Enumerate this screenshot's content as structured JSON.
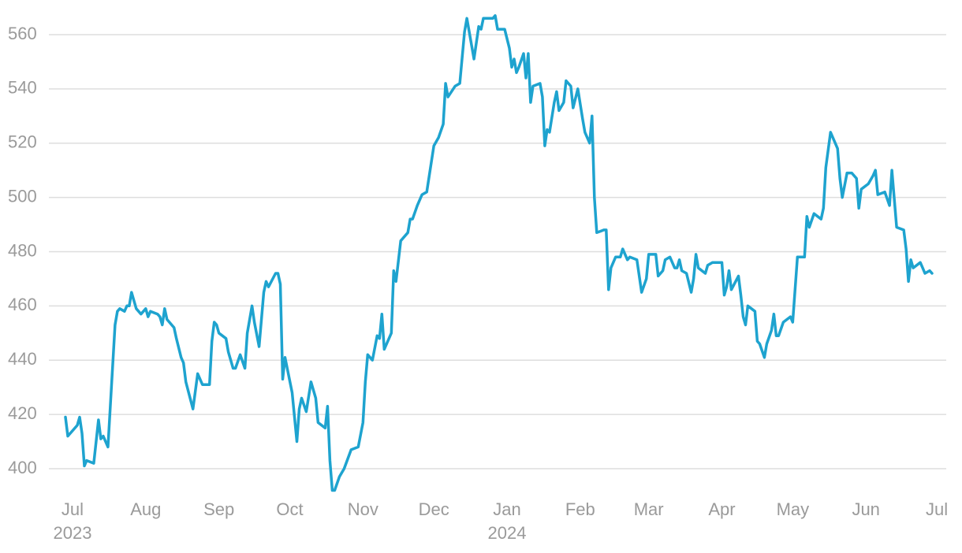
{
  "chart_data": {
    "type": "line",
    "x": [
      -3,
      -2,
      2,
      3,
      4,
      5,
      6,
      9,
      11,
      12,
      13,
      15,
      16,
      18,
      19,
      20,
      22,
      23,
      24,
      25,
      27,
      29,
      31,
      32,
      33,
      36,
      37,
      38,
      39,
      40,
      43,
      44,
      46,
      47,
      48,
      51,
      53,
      55,
      58,
      59,
      60,
      61,
      62,
      65,
      66,
      68,
      69,
      71,
      73,
      74,
      76,
      77,
      79,
      81,
      82,
      83,
      86,
      87,
      88,
      89,
      90,
      93,
      95,
      96,
      97,
      99,
      101,
      103,
      104,
      107,
      108,
      109,
      110,
      111,
      113,
      115,
      118,
      121,
      123,
      124,
      125,
      127,
      129,
      130,
      131,
      132,
      135,
      136,
      137,
      139,
      142,
      143,
      144,
      146,
      148,
      150,
      153,
      155,
      157,
      158,
      159,
      162,
      164,
      166,
      167,
      170,
      172,
      173,
      174,
      178,
      179,
      180,
      183,
      185,
      186,
      187,
      188,
      189,
      191,
      192,
      193,
      194,
      195,
      198,
      199,
      200,
      201,
      202,
      204,
      205,
      206,
      208,
      209,
      211,
      212,
      214,
      216,
      217,
      219,
      220,
      221,
      222,
      225,
      226,
      227,
      228,
      230,
      232,
      233,
      235,
      236,
      239,
      241,
      243,
      244,
      247,
      248,
      250,
      251,
      253,
      255,
      256,
      257,
      258,
      260,
      262,
      263,
      264,
      265,
      268,
      269,
      271,
      275,
      276,
      277,
      278,
      279,
      282,
      283,
      284,
      285,
      286,
      289,
      290,
      291,
      293,
      294,
      296,
      297,
      298,
      299,
      301,
      304,
      305,
      307,
      310,
      311,
      312,
      314,
      317,
      318,
      319,
      321,
      324,
      325,
      326,
      328,
      330,
      332,
      333,
      334,
      337,
      339,
      340,
      341,
      344,
      346,
      347,
      349,
      352,
      353,
      354,
      355,
      356,
      359,
      360,
      361,
      363,
      364
    ],
    "series": [
      {
        "color": "#1ea3cf",
        "values": [
          419,
          412,
          416,
          419,
          413,
          401,
          403,
          402,
          418,
          411,
          412,
          408,
          423,
          453,
          458,
          459,
          458,
          460,
          460,
          465,
          459,
          457,
          459,
          456,
          458,
          457,
          456,
          453,
          459,
          455,
          452,
          448,
          441,
          439,
          432,
          422,
          435,
          431,
          431,
          447,
          454,
          453,
          450,
          448,
          443,
          437,
          437,
          442,
          437,
          450,
          460,
          454,
          445,
          465,
          469,
          467,
          472,
          472,
          468,
          433,
          441,
          428,
          410,
          422,
          426,
          421,
          432,
          426,
          417,
          415,
          423,
          403,
          392,
          392,
          397,
          400,
          407,
          408,
          417,
          432,
          442,
          440,
          449,
          448,
          457,
          444,
          450,
          473,
          469,
          484,
          487,
          492,
          492,
          497,
          501,
          502,
          519,
          522,
          527,
          542,
          537,
          541,
          542,
          561,
          566,
          551,
          563,
          562,
          566,
          566,
          567,
          562,
          562,
          555,
          548,
          551,
          546,
          548,
          553,
          544,
          553,
          535,
          541,
          542,
          537,
          519,
          525,
          524,
          535,
          539,
          532,
          535,
          543,
          541,
          533,
          540,
          529,
          524,
          520,
          530,
          500,
          487,
          488,
          488,
          466,
          474,
          478,
          478,
          481,
          477,
          478,
          477,
          465,
          470,
          479,
          479,
          471,
          473,
          477,
          478,
          474,
          474,
          477,
          473,
          472,
          465,
          470,
          479,
          474,
          472,
          475,
          476,
          476,
          464,
          467,
          473,
          466,
          471,
          464,
          456,
          453,
          460,
          458,
          447,
          446,
          441,
          446,
          451,
          457,
          449,
          449,
          454,
          456,
          454,
          478,
          478,
          493,
          489,
          494,
          492,
          496,
          511,
          524,
          518,
          507,
          500,
          509,
          509,
          507,
          496,
          503,
          505,
          508,
          510,
          501,
          502,
          497,
          510,
          489,
          488,
          481,
          469,
          477,
          474,
          476,
          474,
          472,
          473,
          472
        ]
      }
    ],
    "xlim": [
      -4,
      370
    ],
    "ylim": [
      390,
      570
    ],
    "yticks": [
      400,
      420,
      440,
      460,
      480,
      500,
      520,
      540,
      560
    ],
    "xticks": [
      {
        "value": 0,
        "label": "Jul"
      },
      {
        "value": 31,
        "label": "Aug"
      },
      {
        "value": 62,
        "label": "Sep"
      },
      {
        "value": 92,
        "label": "Oct"
      },
      {
        "value": 123,
        "label": "Nov"
      },
      {
        "value": 153,
        "label": "Dec"
      },
      {
        "value": 184,
        "label": "Jan"
      },
      {
        "value": 215,
        "label": "Feb"
      },
      {
        "value": 244,
        "label": "Mar"
      },
      {
        "value": 275,
        "label": "Apr"
      },
      {
        "value": 305,
        "label": "May"
      },
      {
        "value": 336,
        "label": "Jun"
      },
      {
        "value": 366,
        "label": "Jul"
      }
    ],
    "year_labels": [
      {
        "value": 0,
        "label": "2023"
      },
      {
        "value": 184,
        "label": "2024"
      }
    ],
    "grid": true
  }
}
